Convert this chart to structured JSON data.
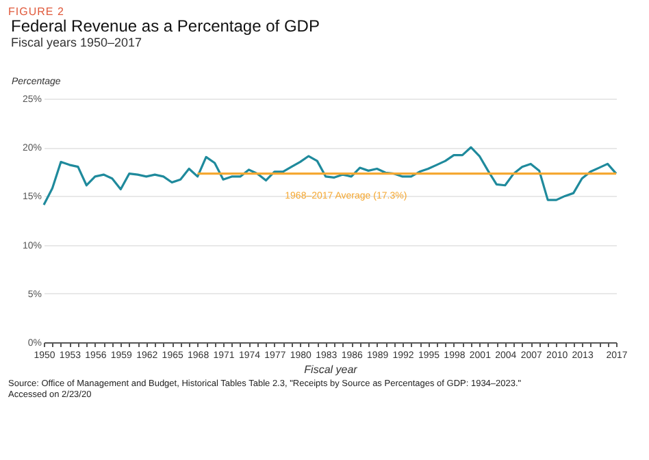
{
  "chart_data": {
    "type": "line",
    "title": "Federal Revenue as a Percentage of GDP",
    "subtitle": "Fiscal years 1950–2017",
    "xlabel": "Fiscal year",
    "ylabel": "Percentage",
    "annotations": [
      "FIGURE 2",
      "Source: Office of Management and Budget, Historical Tables Table 2.3, \"Receipts by Source as Percentages of GDP: 1934–2023.\"",
      "Accessed on 2/23/20"
    ],
    "x": [
      1950,
      1951,
      1952,
      1953,
      1954,
      1955,
      1956,
      1957,
      1958,
      1959,
      1960,
      1961,
      1962,
      1963,
      1964,
      1965,
      1966,
      1967,
      1968,
      1969,
      1970,
      1971,
      1972,
      1973,
      1974,
      1975,
      1976,
      1977,
      1978,
      1979,
      1980,
      1981,
      1982,
      1983,
      1984,
      1985,
      1986,
      1987,
      1988,
      1989,
      1990,
      1991,
      1992,
      1993,
      1994,
      1995,
      1996,
      1997,
      1998,
      1999,
      2000,
      2001,
      2002,
      2003,
      2004,
      2005,
      2006,
      2007,
      2008,
      2009,
      2010,
      2011,
      2012,
      2013,
      2014,
      2015,
      2016,
      2017
    ],
    "series": [
      {
        "color": "#1f8a9c",
        "values": [
          14.1,
          15.8,
          18.5,
          18.2,
          18.0,
          16.1,
          17.0,
          17.2,
          16.8,
          15.7,
          17.3,
          17.2,
          17.0,
          17.2,
          17.0,
          16.4,
          16.7,
          17.8,
          17.0,
          19.0,
          18.4,
          16.7,
          17.0,
          17.0,
          17.7,
          17.3,
          16.6,
          17.5,
          17.5,
          18.0,
          18.5,
          19.1,
          18.6,
          17.0,
          16.9,
          17.2,
          17.0,
          17.9,
          17.6,
          17.8,
          17.4,
          17.3,
          17.0,
          17.0,
          17.5,
          17.8,
          18.2,
          18.6,
          19.2,
          19.2,
          20.0,
          19.1,
          17.6,
          16.2,
          16.1,
          17.3,
          18.0,
          18.3,
          17.6,
          14.6,
          14.6,
          15.0,
          15.3,
          16.8,
          17.5,
          17.9,
          18.3,
          17.3
        ]
      },
      {
        "name": "1968–2017 Average (17.3%)",
        "color": "#f5a832",
        "x": [
          1968,
          2017
        ],
        "values": [
          17.3,
          17.3
        ]
      }
    ],
    "xlim": [
      1950,
      2017
    ],
    "xticks": [
      1950,
      {
        "value": 1951,
        "label": null
      },
      {
        "value": 1952,
        "label": null
      },
      1953,
      {
        "value": 1954,
        "label": null
      },
      {
        "value": 1955,
        "label": null
      },
      1956,
      {
        "value": 1957,
        "label": null
      },
      {
        "value": 1958,
        "label": null
      },
      1959,
      {
        "value": 1960,
        "label": null
      },
      {
        "value": 1961,
        "label": null
      },
      1962,
      {
        "value": 1963,
        "label": null
      },
      {
        "value": 1964,
        "label": null
      },
      1965,
      {
        "value": 1966,
        "label": null
      },
      {
        "value": 1967,
        "label": null
      },
      1968,
      {
        "value": 1969,
        "label": null
      },
      {
        "value": 1970,
        "label": null
      },
      1971,
      {
        "value": 1972,
        "label": null
      },
      {
        "value": 1973,
        "label": null
      },
      1974,
      {
        "value": 1975,
        "label": null
      },
      {
        "value": 1976,
        "label": null
      },
      1977,
      {
        "value": 1978,
        "label": null
      },
      {
        "value": 1979,
        "label": null
      },
      1980,
      {
        "value": 1981,
        "label": null
      },
      {
        "value": 1982,
        "label": null
      },
      1983,
      {
        "value": 1984,
        "label": null
      },
      {
        "value": 1985,
        "label": null
      },
      1986,
      {
        "value": 1987,
        "label": null
      },
      {
        "value": 1988,
        "label": null
      },
      1989,
      {
        "value": 1990,
        "label": null
      },
      {
        "value": 1991,
        "label": null
      },
      1992,
      {
        "value": 1993,
        "label": null
      },
      {
        "value": 1994,
        "label": null
      },
      1995,
      {
        "value": 1996,
        "label": null
      },
      {
        "value": 1997,
        "label": null
      },
      1998,
      {
        "value": 1999,
        "label": null
      },
      {
        "value": 2000,
        "label": null
      },
      2001,
      {
        "value": 2002,
        "label": null
      },
      {
        "value": 2003,
        "label": null
      },
      2004,
      {
        "value": 2005,
        "label": null
      },
      {
        "value": 2006,
        "label": null
      },
      2007,
      {
        "value": 2008,
        "label": null
      },
      {
        "value": 2009,
        "label": null
      },
      2010,
      {
        "value": 2011,
        "label": null
      },
      {
        "value": 2012,
        "label": null
      },
      2013,
      {
        "value": 2014,
        "label": null
      },
      {
        "value": 2015,
        "label": null
      },
      {
        "value": 2016,
        "label": null
      },
      2017
    ],
    "ylim": [
      0,
      25
    ],
    "yticks": [
      {
        "value": 0,
        "label": "0%"
      },
      {
        "value": 5,
        "label": "5%"
      },
      {
        "value": 10,
        "label": "10%"
      },
      {
        "value": 15,
        "label": "15%"
      },
      {
        "value": 20,
        "label": "20%"
      },
      {
        "value": 25,
        "label": "25%"
      }
    ],
    "grid": "y",
    "marker": "none",
    "line_style": "solid"
  }
}
